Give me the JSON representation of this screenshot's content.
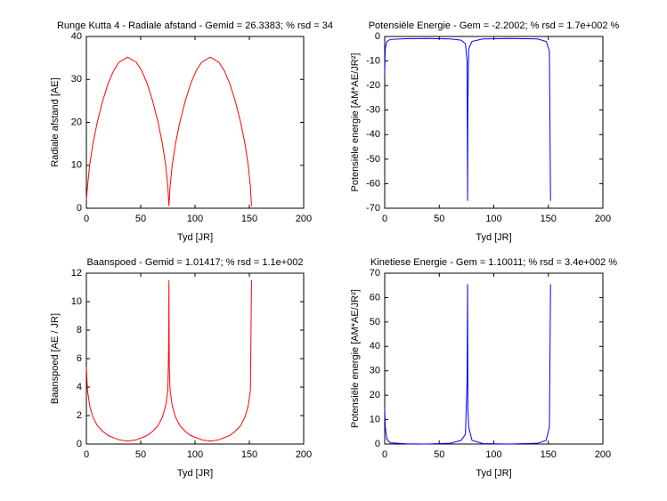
{
  "chart_data": [
    {
      "type": "line",
      "title": "Runge Kutta 4 - Radiale afstand - Gemid = 26.3383; % rsd = 34",
      "xlabel": "Tyd [JR]",
      "ylabel": "Radiale afstand [AE]",
      "color": "#ff0000",
      "xlim": [
        0,
        200
      ],
      "ylim": [
        0,
        40
      ],
      "xticks": [
        0,
        50,
        100,
        150,
        200
      ],
      "yticks": [
        0,
        10,
        20,
        30,
        40
      ],
      "x": [
        0,
        1,
        3,
        6,
        10,
        15,
        20,
        25,
        30,
        38,
        46,
        51,
        56,
        61,
        66,
        70,
        73,
        75,
        76,
        77,
        79,
        82,
        86,
        91,
        96,
        101,
        106,
        114,
        122,
        127,
        132,
        137,
        142,
        146,
        149,
        151,
        152
      ],
      "values": [
        2,
        5,
        10,
        15,
        20,
        25,
        29,
        32,
        34,
        35.2,
        34,
        32,
        29,
        25,
        20,
        15,
        10,
        5,
        0.5,
        5,
        10,
        15,
        20,
        25,
        29,
        32,
        34,
        35.2,
        34,
        32,
        29,
        25,
        20,
        15,
        10,
        5,
        0.5
      ]
    },
    {
      "type": "line",
      "title": "Potensiële Energie - Gem = -2.2002; % rsd = 1.7e+002 %",
      "xlabel": "Tyd [JR]",
      "ylabel": "Potensiële energie [AM*AE/JR²]",
      "color": "#0000ff",
      "xlim": [
        0,
        200
      ],
      "ylim": [
        -70,
        0
      ],
      "xticks": [
        0,
        50,
        100,
        150,
        200
      ],
      "yticks": [
        -70,
        -60,
        -50,
        -40,
        -30,
        -20,
        -10,
        0
      ],
      "x": [
        0,
        0.5,
        2,
        5,
        20,
        38,
        60,
        70,
        74,
        75.5,
        76,
        76.3,
        77,
        80,
        90,
        114,
        140,
        148,
        151,
        152
      ],
      "values": [
        -15,
        -5,
        -2,
        -1.2,
        -0.9,
        -0.8,
        -1,
        -1.5,
        -3,
        -10,
        -67,
        -27,
        -5,
        -2,
        -1,
        -0.8,
        -1,
        -2,
        -6,
        -67
      ]
    },
    {
      "type": "line",
      "title": "Baanspoed - Gemid = 1.01417; % rsd = 1.1e+002",
      "xlabel": "Tyd [JR]",
      "ylabel": "Baanspoed [AE / JR]",
      "color": "#ff0000",
      "xlim": [
        0,
        200
      ],
      "ylim": [
        0,
        12
      ],
      "xticks": [
        0,
        50,
        100,
        150,
        200
      ],
      "yticks": [
        0,
        2,
        4,
        6,
        8,
        10,
        12
      ],
      "x": [
        0,
        1,
        3,
        6,
        10,
        15,
        20,
        30,
        38,
        46,
        56,
        61,
        66,
        70,
        73,
        75,
        75.8,
        76,
        76.3,
        77,
        79,
        82,
        86,
        91,
        96,
        106,
        114,
        122,
        132,
        137,
        142,
        146,
        149,
        151,
        152
      ],
      "values": [
        5.4,
        3.8,
        2.7,
        1.9,
        1.3,
        0.9,
        0.6,
        0.3,
        0.2,
        0.3,
        0.6,
        0.9,
        1.3,
        1.9,
        2.7,
        3.8,
        7.2,
        11.5,
        5.4,
        3.8,
        2.7,
        1.9,
        1.3,
        0.9,
        0.6,
        0.3,
        0.2,
        0.3,
        0.6,
        0.9,
        1.3,
        1.9,
        2.7,
        3.8,
        11.5
      ]
    },
    {
      "type": "line",
      "title": "Kinetiese Energie - Gem = 1.10011; % rsd = 3.4e+002 %",
      "xlabel": "Tyd [JR]",
      "ylabel": "Potensiële energie [AM*AE/JR²]",
      "color": "#0000ff",
      "xlim": [
        0,
        200
      ],
      "ylim": [
        0,
        70
      ],
      "xticks": [
        0,
        50,
        100,
        150,
        200
      ],
      "yticks": [
        0,
        10,
        20,
        30,
        40,
        50,
        60,
        70
      ],
      "x": [
        0,
        0.5,
        2,
        5,
        20,
        38,
        60,
        70,
        74,
        75.5,
        76,
        76.3,
        77,
        80,
        90,
        114,
        140,
        148,
        151,
        152
      ],
      "values": [
        14.5,
        7,
        2,
        0.5,
        0.1,
        0,
        0.3,
        1.5,
        4,
        26,
        65.5,
        14,
        7,
        1.5,
        0.2,
        0,
        0.3,
        1.5,
        7,
        65.5
      ]
    }
  ]
}
